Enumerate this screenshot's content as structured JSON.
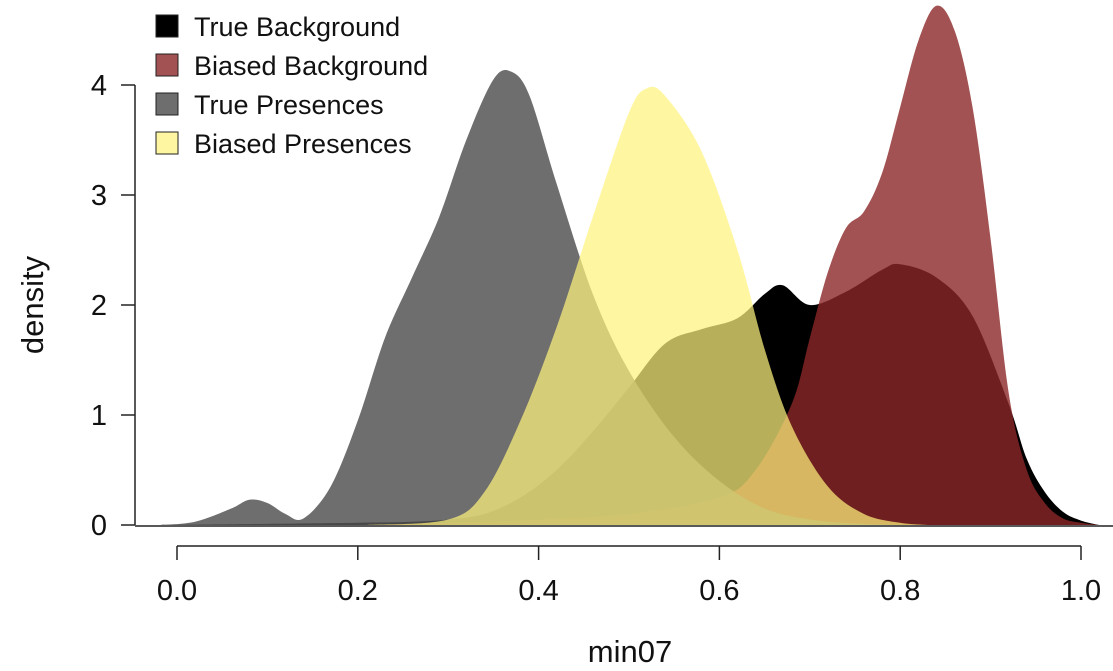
{
  "chart_data": {
    "type": "area",
    "title": "",
    "xlabel": "min07",
    "ylabel": "density",
    "xlim": [
      -0.02,
      1.02
    ],
    "ylim": [
      0,
      4.75
    ],
    "x_ticks": [
      0.0,
      0.2,
      0.4,
      0.6,
      0.8,
      1.0
    ],
    "x_tick_labels": [
      "0.0",
      "0.2",
      "0.4",
      "0.6",
      "0.8",
      "1.0"
    ],
    "y_ticks": [
      0,
      1,
      2,
      3,
      4
    ],
    "y_tick_labels": [
      "0",
      "1",
      "2",
      "3",
      "4"
    ],
    "grid": false,
    "legend_position": "top-left",
    "series": [
      {
        "name": "True Background",
        "color": "#000000",
        "opacity": 1.0,
        "x": [
          -0.02,
          0.1,
          0.2,
          0.26,
          0.3,
          0.34,
          0.38,
          0.42,
          0.46,
          0.5,
          0.54,
          0.58,
          0.62,
          0.65,
          0.67,
          0.7,
          0.74,
          0.78,
          0.8,
          0.84,
          0.88,
          0.92,
          0.94,
          0.96,
          0.98,
          1.0,
          1.02
        ],
        "y": [
          0.0,
          0.01,
          0.02,
          0.03,
          0.05,
          0.1,
          0.25,
          0.5,
          0.85,
          1.25,
          1.65,
          1.78,
          1.88,
          2.1,
          2.18,
          2.0,
          2.12,
          2.32,
          2.37,
          2.25,
          1.9,
          1.1,
          0.6,
          0.3,
          0.12,
          0.04,
          0.0
        ]
      },
      {
        "name": "Biased Background",
        "color": "#8b2727",
        "opacity": 0.8,
        "x": [
          0.2,
          0.3,
          0.4,
          0.5,
          0.6,
          0.64,
          0.68,
          0.7,
          0.72,
          0.74,
          0.76,
          0.78,
          0.8,
          0.82,
          0.84,
          0.86,
          0.88,
          0.9,
          0.92,
          0.94,
          0.96,
          0.98,
          1.0,
          1.02
        ],
        "y": [
          0.0,
          0.02,
          0.05,
          0.1,
          0.25,
          0.5,
          1.1,
          1.7,
          2.3,
          2.7,
          2.85,
          3.2,
          3.8,
          4.4,
          4.72,
          4.5,
          3.8,
          2.6,
          1.2,
          0.5,
          0.2,
          0.06,
          0.02,
          0.0
        ]
      },
      {
        "name": "True Presences",
        "color": "#555555",
        "opacity": 0.85,
        "x": [
          -0.02,
          0.02,
          0.06,
          0.08,
          0.1,
          0.12,
          0.14,
          0.17,
          0.2,
          0.23,
          0.26,
          0.29,
          0.32,
          0.35,
          0.37,
          0.39,
          0.42,
          0.46,
          0.5,
          0.55,
          0.6,
          0.65,
          0.7,
          0.76,
          0.83
        ],
        "y": [
          0.0,
          0.03,
          0.15,
          0.23,
          0.2,
          0.1,
          0.06,
          0.35,
          0.95,
          1.7,
          2.25,
          2.8,
          3.5,
          4.05,
          4.12,
          3.9,
          3.1,
          2.1,
          1.4,
          0.8,
          0.4,
          0.15,
          0.05,
          0.01,
          0.0
        ]
      },
      {
        "name": "Biased Presences",
        "color": "#fff27d",
        "opacity": 0.72,
        "x": [
          0.21,
          0.3,
          0.34,
          0.38,
          0.42,
          0.46,
          0.5,
          0.52,
          0.54,
          0.58,
          0.62,
          0.65,
          0.68,
          0.72,
          0.76,
          0.8,
          0.83
        ],
        "y": [
          0.0,
          0.05,
          0.3,
          0.95,
          1.8,
          2.8,
          3.75,
          3.97,
          3.9,
          3.4,
          2.5,
          1.6,
          0.9,
          0.35,
          0.1,
          0.02,
          0.0
        ]
      }
    ]
  }
}
